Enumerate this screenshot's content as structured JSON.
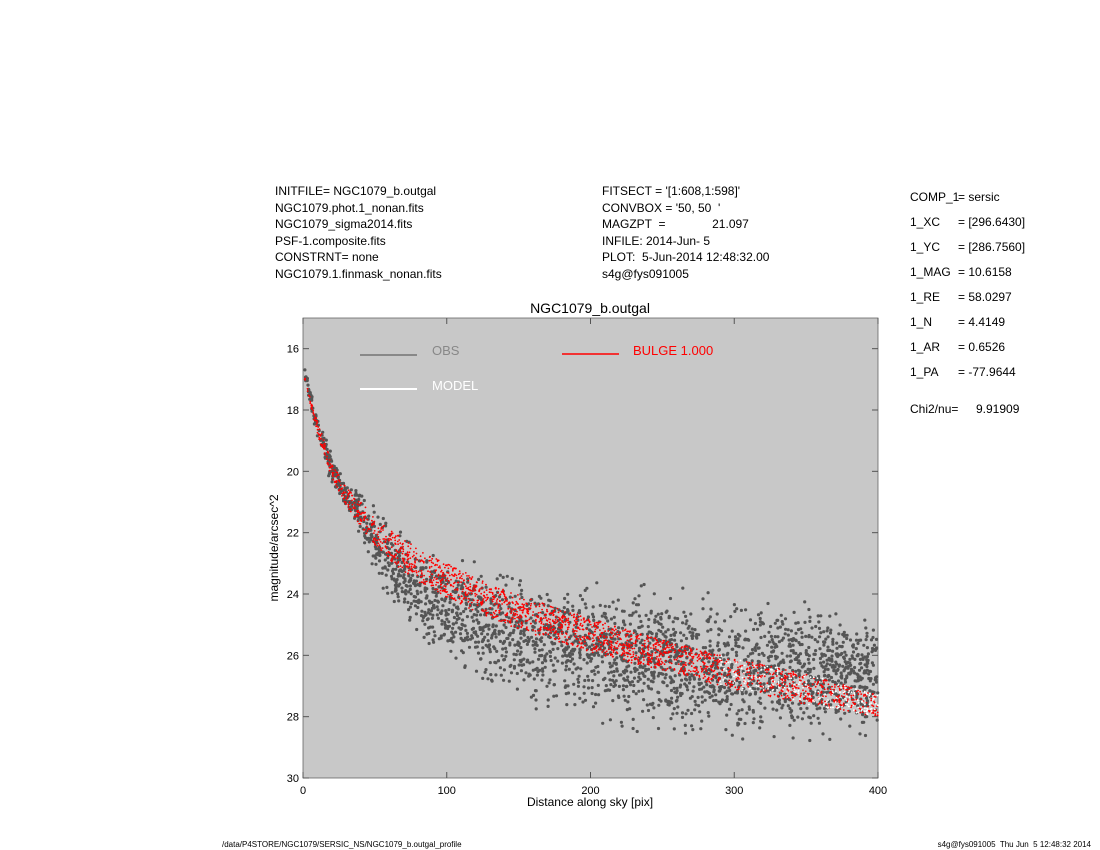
{
  "header": {
    "left_lines": [
      "INITFILE= NGC1079_b.outgal",
      "NGC1079.phot.1_nonan.fits",
      "NGC1079_sigma2014.fits",
      "PSF-1.composite.fits",
      "CONSTRNT= none",
      "NGC1079.1.finmask_nonan.fits"
    ],
    "mid_lines": [
      "FITSECT = '[1:608,1:598]'",
      "CONVBOX = '50, 50  '",
      "MAGZPT  =              21.097",
      "INFILE: 2014-Jun- 5",
      "PLOT:  5-Jun-2014 12:48:32.00",
      "s4g@fys091005"
    ]
  },
  "params": [
    {
      "name": "COMP_1",
      "value": "= sersic"
    },
    {
      "name": "1_XC",
      "value": "= [296.6430]"
    },
    {
      "name": "1_YC",
      "value": "= [286.7560]"
    },
    {
      "name": "1_MAG",
      "value": "= 10.6158"
    },
    {
      "name": "1_RE",
      "value": "= 58.0297"
    },
    {
      "name": "1_N",
      "value": "= 4.4149"
    },
    {
      "name": "1_AR",
      "value": "= 0.6526"
    },
    {
      "name": "1_PA",
      "value": "= -77.9644"
    }
  ],
  "chi2": {
    "label": "Chi2/nu=",
    "value": "9.91909"
  },
  "footer": {
    "left": "/data/P4STORE/NGC1079/SERSIC_NS/NGC1079_b.outgal_profile",
    "right": "s4g@fys091005  Thu Jun  5 12:48:32 2014"
  },
  "colors": {
    "plot_background": "#c8c8c8",
    "obs": "#555555",
    "obs_legend": "#888888",
    "model": "#ffffff",
    "bulge": "#ff0000"
  },
  "chart_data": {
    "type": "scatter",
    "title": "NGC1079_b.outgal",
    "xlabel": "Distance along sky [pix]",
    "ylabel": "magnitude/arcsec^2",
    "xlim": [
      0,
      400
    ],
    "ylim": [
      30,
      15
    ],
    "y_inverted": true,
    "xticks": [
      0,
      100,
      200,
      300,
      400
    ],
    "yticks": [
      16,
      18,
      20,
      22,
      24,
      26,
      28,
      30
    ],
    "grid": false,
    "legend": [
      {
        "name": "OBS",
        "color": "#888888"
      },
      {
        "name": "MODEL",
        "color": "#ffffff"
      },
      {
        "name": "BULGE  1.000",
        "color": "#ff0000"
      }
    ],
    "series": [
      {
        "name": "OBS",
        "kind": "scatter-band",
        "x": [
          1,
          5,
          10,
          20,
          30,
          40,
          50,
          60,
          80,
          100,
          130,
          160,
          200,
          250,
          300,
          350,
          400
        ],
        "y_mid": [
          16.7,
          17.6,
          18.6,
          19.9,
          20.8,
          21.3,
          22.2,
          23.0,
          23.9,
          24.5,
          25.0,
          25.5,
          25.8,
          26.2,
          26.5,
          26.6,
          26.6
        ],
        "y_spread": [
          0.2,
          0.3,
          0.4,
          0.5,
          0.5,
          0.9,
          1.0,
          1.2,
          1.4,
          1.6,
          1.8,
          1.9,
          2.0,
          2.1,
          2.1,
          2.0,
          1.8
        ]
      },
      {
        "name": "BULGE  1.000",
        "kind": "model-band",
        "x": [
          1,
          5,
          10,
          20,
          30,
          40,
          50,
          60,
          80,
          100,
          130,
          160,
          200,
          250,
          300,
          350,
          400
        ],
        "y_upper": [
          16.8,
          17.6,
          18.4,
          19.7,
          20.5,
          21.0,
          21.5,
          21.9,
          22.5,
          23.0,
          23.7,
          24.2,
          24.8,
          25.5,
          26.1,
          26.6,
          27.3
        ],
        "y_lower": [
          17.0,
          17.8,
          18.8,
          20.2,
          21.1,
          21.8,
          22.4,
          22.9,
          23.6,
          24.1,
          24.8,
          25.3,
          25.9,
          26.5,
          27.1,
          27.6,
          28.0
        ]
      }
    ]
  }
}
